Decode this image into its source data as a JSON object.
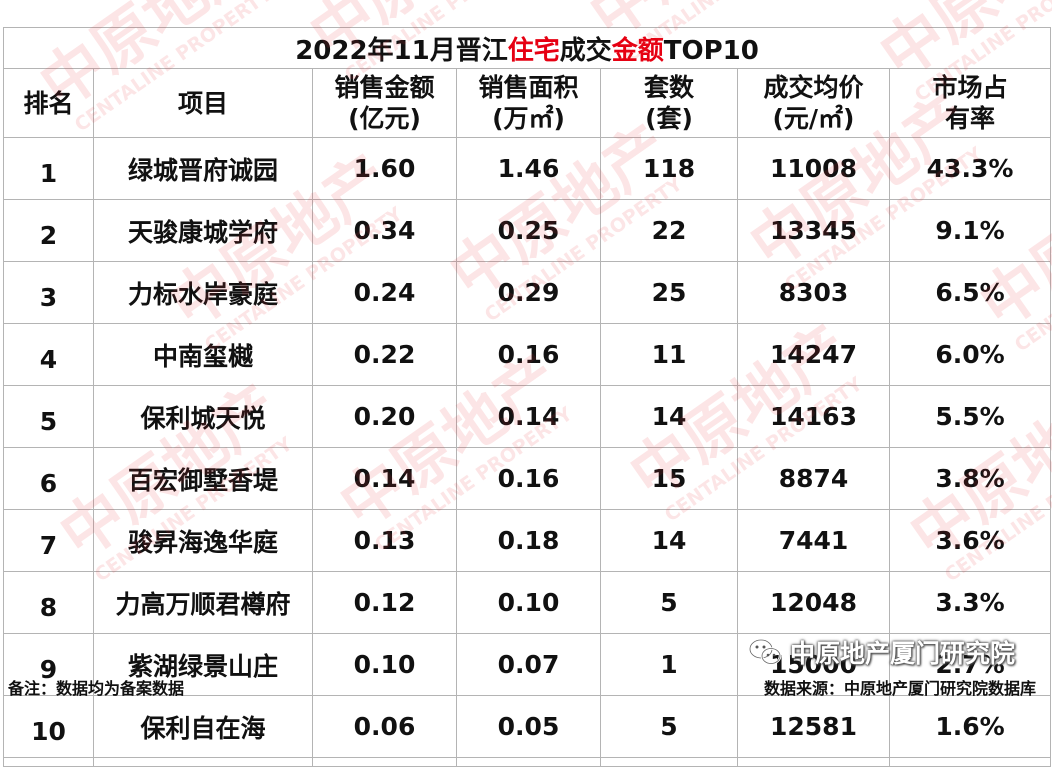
{
  "title": {
    "parts": [
      {
        "text": "2022年11月晋江",
        "highlight": false
      },
      {
        "text": "住宅",
        "highlight": true
      },
      {
        "text": "成交",
        "highlight": false
      },
      {
        "text": "金额",
        "highlight": true
      },
      {
        "text": "TOP10",
        "highlight": false
      }
    ],
    "highlight_color": "#e60012"
  },
  "headers": [
    {
      "line1": "排名",
      "line2": ""
    },
    {
      "line1": "项目",
      "line2": ""
    },
    {
      "line1": "销售金额",
      "line2": "(亿元)"
    },
    {
      "line1": "销售面积",
      "line2": "(万㎡)"
    },
    {
      "line1": "套数",
      "line2": "(套)"
    },
    {
      "line1": "成交均价",
      "line2": "(元/㎡)"
    },
    {
      "line1": "市场占",
      "line2": "有率"
    }
  ],
  "rows": [
    {
      "rank": "1",
      "project": "绿城晋府诚园",
      "amount": "1.60",
      "area": "1.46",
      "units": "118",
      "avg_price": "11008",
      "share": "43.3%"
    },
    {
      "rank": "2",
      "project": "天骏康城学府",
      "amount": "0.34",
      "area": "0.25",
      "units": "22",
      "avg_price": "13345",
      "share": "9.1%"
    },
    {
      "rank": "3",
      "project": "力标水岸豪庭",
      "amount": "0.24",
      "area": "0.29",
      "units": "25",
      "avg_price": "8303",
      "share": "6.5%"
    },
    {
      "rank": "4",
      "project": "中南玺樾",
      "amount": "0.22",
      "area": "0.16",
      "units": "11",
      "avg_price": "14247",
      "share": "6.0%"
    },
    {
      "rank": "5",
      "project": "保利城天悦",
      "amount": "0.20",
      "area": "0.14",
      "units": "14",
      "avg_price": "14163",
      "share": "5.5%"
    },
    {
      "rank": "6",
      "project": "百宏御墅香堤",
      "amount": "0.14",
      "area": "0.16",
      "units": "15",
      "avg_price": "8874",
      "share": "3.8%"
    },
    {
      "rank": "7",
      "project": "骏昇海逸华庭",
      "amount": "0.13",
      "area": "0.18",
      "units": "14",
      "avg_price": "7441",
      "share": "3.6%"
    },
    {
      "rank": "8",
      "project": "力高万顺君樽府",
      "amount": "0.12",
      "area": "0.10",
      "units": "5",
      "avg_price": "12048",
      "share": "3.3%"
    },
    {
      "rank": "9",
      "project": "紫湖绿景山庄",
      "amount": "0.10",
      "area": "0.07",
      "units": "1",
      "avg_price": "15000",
      "share": "2.7%"
    },
    {
      "rank": "10",
      "project": "保利自在海",
      "amount": "0.06",
      "area": "0.05",
      "units": "5",
      "avg_price": "12581",
      "share": "1.6%"
    }
  ],
  "footer": {
    "note": "备注：数据均为备案数据",
    "source": "数据来源：中原地产厦门研究院数据库"
  },
  "wechat": {
    "icon": "wechat-icon",
    "account": "中原地产厦门研究院"
  },
  "watermark": {
    "text": "中原地产",
    "sub": "CENTALINE PROPERTY",
    "color": "#e8383d"
  },
  "colors": {
    "border": "#b4b4b4",
    "text": "#111111"
  }
}
